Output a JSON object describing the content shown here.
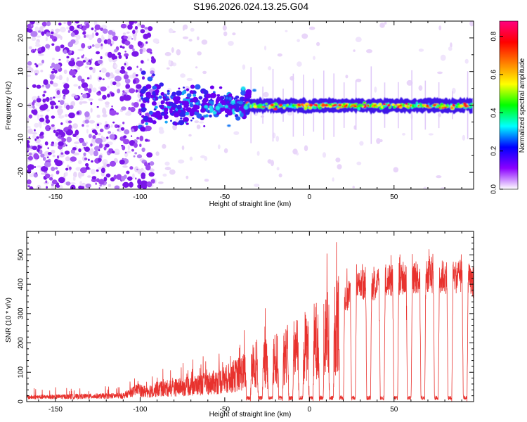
{
  "title": "S196.2026.024.13.25.G04",
  "colors": {
    "line": "#e8322e",
    "spectrogram_background": "#ffffff",
    "cold": "#8a2be2",
    "faint": "#e6d2fb"
  },
  "chart_data": [
    {
      "type": "heatmap",
      "name": "spectrogram",
      "xlabel": "Height of straight line (km)",
      "ylabel": "Frequency (Hz)",
      "xlim": [
        -167,
        97
      ],
      "ylim": [
        -25,
        25
      ],
      "xticks": [
        -150,
        -100,
        -50,
        0,
        50
      ],
      "yticks": [
        20,
        10,
        0,
        -10,
        -20
      ],
      "colorbar": {
        "label": "Normalized spectral amplitude",
        "range": [
          0,
          0.88
        ],
        "ticks": [
          0.0,
          0.2,
          0.4,
          0.6,
          0.8
        ],
        "colormap": [
          "#ffffff",
          "#8b00ff",
          "#0000ff",
          "#00ffff",
          "#00ff00",
          "#ffff00",
          "#ff8000",
          "#ff0000",
          "#ff0080"
        ]
      },
      "features": {
        "noise_region_km": [
          -167,
          -120
        ],
        "onset_km": -100,
        "signal_center_hz": 0,
        "strong_signal_start_km": -35
      }
    },
    {
      "type": "line",
      "name": "snr",
      "xlabel": "Height of straight line (km)",
      "ylabel": "SNR (10 * v/v)",
      "xlim": [
        -167,
        97
      ],
      "ylim": [
        0,
        580
      ],
      "xticks": [
        -150,
        -100,
        -50,
        0,
        50
      ],
      "yticks": [
        0,
        100,
        200,
        300,
        400,
        500
      ],
      "envelope": {
        "x": [
          -167,
          -110,
          -100,
          -90,
          -70,
          -55,
          -45,
          -35,
          -20,
          -10,
          0,
          10,
          20,
          25,
          30,
          40,
          50,
          70,
          90,
          97
        ],
        "y": [
          15,
          20,
          45,
          60,
          75,
          95,
          120,
          160,
          200,
          240,
          280,
          330,
          370,
          400,
          430,
          430,
          450,
          460,
          460,
          440
        ]
      },
      "dropouts_km": [
        -36,
        -29,
        -23,
        -17,
        -11,
        -5,
        1,
        7,
        13,
        19,
        26,
        35,
        43,
        51,
        59,
        67,
        75,
        83,
        92
      ]
    }
  ]
}
